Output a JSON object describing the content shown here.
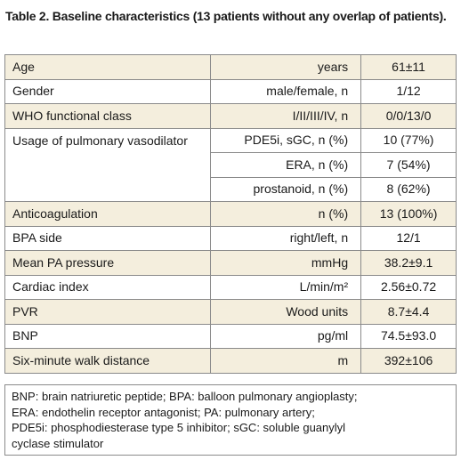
{
  "title": "Table 2. Baseline characteristics (13 patients without any overlap of patients).",
  "table": {
    "rows": [
      [
        "Age",
        "years",
        "61±11"
      ],
      [
        "Gender",
        "male/female, n",
        "1/12"
      ],
      [
        "WHO functional class",
        "I/II/III/IV, n",
        "0/0/13/0"
      ],
      {
        "label": "Usage of pulmonary vasodilator",
        "items": [
          [
            "PDE5i, sGC, n (%)",
            "10 (77%)"
          ],
          [
            "ERA, n (%)",
            "7 (54%)"
          ],
          [
            "prostanoid, n (%)",
            "8 (62%)"
          ]
        ]
      },
      [
        "Anticoagulation",
        "n (%)",
        "13 (100%)"
      ],
      [
        "BPA side",
        "right/left, n",
        "12/1"
      ],
      [
        "Mean PA pressure",
        "mmHg",
        "38.2±9.1"
      ],
      [
        "Cardiac index",
        "L/min/m²",
        "2.56±0.72"
      ],
      [
        "PVR",
        "Wood units",
        "8.7±4.4"
      ],
      [
        "BNP",
        "pg/ml",
        "74.5±93.0"
      ],
      [
        "Six-minute walk distance",
        "m",
        "392±106"
      ]
    ]
  },
  "footnote": [
    "BNP: brain natriuretic peptide; BPA: balloon pulmonary angioplasty;",
    "ERA: endothelin receptor antagonist; PA: pulmonary artery;",
    "PDE5i: phosphodiesterase type 5 inhibitor; sGC: soluble guanylyl",
    "cyclase stimulator"
  ]
}
